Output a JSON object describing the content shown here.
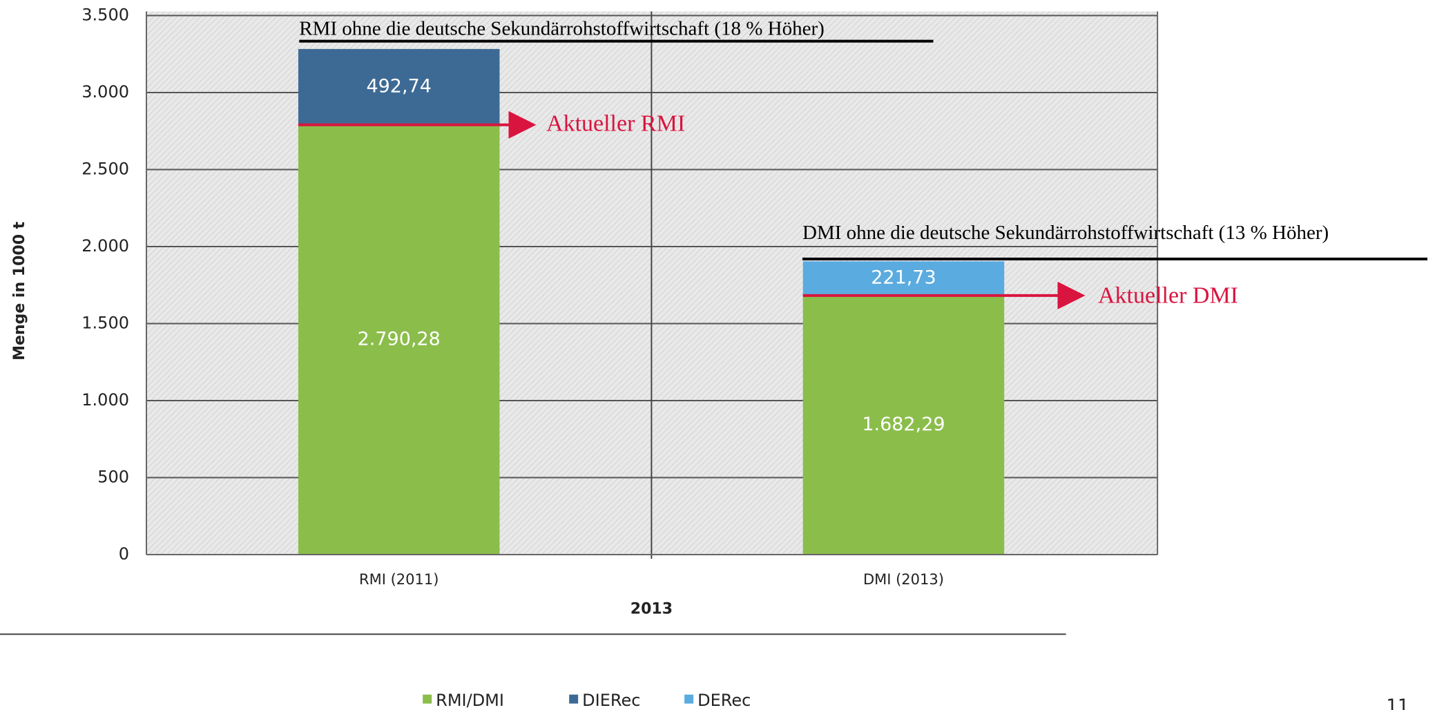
{
  "chart_data": {
    "type": "bar",
    "stacked": true,
    "categories": [
      "RMI (2011)",
      "DMI (2013)"
    ],
    "series": [
      {
        "name": "RMI/DMI",
        "color": "#8bbd4b",
        "values": [
          2790.28,
          1682.29
        ],
        "value_labels": [
          "2.790,28",
          "1.682,29"
        ]
      },
      {
        "name": "DIERec",
        "color": "#3d6a94",
        "values": [
          492.74,
          null
        ],
        "value_labels": [
          "492,74",
          null
        ]
      },
      {
        "name": "DERec",
        "color": "#5aabdf",
        "values": [
          null,
          221.73
        ],
        "value_labels": [
          null,
          "221,73"
        ]
      }
    ],
    "ylim": [
      0,
      3500
    ],
    "yticks": [
      0,
      500,
      {
        "value": 1000,
        "label": "1.000"
      },
      {
        "value": 1500,
        "label": "1.500"
      },
      {
        "value": 2000,
        "label": "2.000"
      },
      {
        "value": 2500,
        "label": "2.500"
      },
      {
        "value": 3000,
        "label": "3.000"
      },
      {
        "value": 3500,
        "label": "3.500"
      }
    ],
    "grid": true,
    "xlabel": "2013",
    "ylabel": "Menge in 1000 t",
    "legend": "bottom",
    "annotations": [
      {
        "text": "RMI ohne die deutsche Sekundärrohstoffwirtschaft (18 % Höher)",
        "category": 0
      },
      {
        "text": "Aktueller RMI",
        "category": 0
      },
      {
        "text": "DMI ohne die deutsche Sekundärrohstoffwirtschaft (13 % Höher)",
        "category": 1
      },
      {
        "text": "Aktueller DMI",
        "category": 1
      }
    ],
    "page_number": "11"
  }
}
